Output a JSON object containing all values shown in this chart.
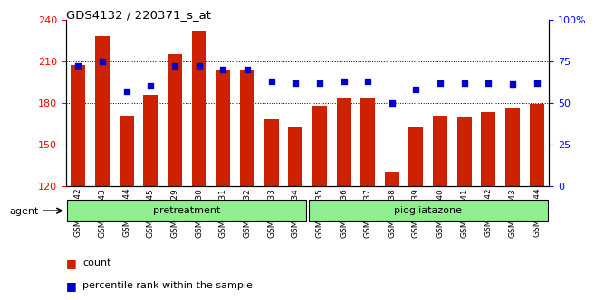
{
  "title": "GDS4132 / 220371_s_at",
  "samples": [
    "GSM201542",
    "GSM201543",
    "GSM201544",
    "GSM201545",
    "GSM201829",
    "GSM201830",
    "GSM201831",
    "GSM201832",
    "GSM201833",
    "GSM201834",
    "GSM201835",
    "GSM201836",
    "GSM201837",
    "GSM201838",
    "GSM201839",
    "GSM201840",
    "GSM201841",
    "GSM201842",
    "GSM201843",
    "GSM201844"
  ],
  "counts": [
    207,
    228,
    171,
    186,
    215,
    232,
    204,
    204,
    168,
    163,
    178,
    183,
    183,
    130,
    162,
    171,
    170,
    173,
    176,
    179
  ],
  "percentiles": [
    72,
    75,
    57,
    60,
    72,
    72,
    70,
    70,
    63,
    62,
    62,
    63,
    63,
    50,
    58,
    62,
    62,
    62,
    61,
    62
  ],
  "bar_color": "#cc2200",
  "dot_color": "#0000cc",
  "ylim_left": [
    120,
    240
  ],
  "ylim_right": [
    0,
    100
  ],
  "yticks_left": [
    120,
    150,
    180,
    210,
    240
  ],
  "yticks_right": [
    0,
    25,
    50,
    75,
    100
  ],
  "gridlines_at": [
    150,
    180,
    210
  ],
  "group1_label": "pretreatment",
  "group2_label": "piogliatazone",
  "group1_count": 10,
  "group2_count": 10,
  "agent_label": "agent",
  "legend_count_label": "count",
  "legend_pct_label": "percentile rank within the sample",
  "bg_color": "#ffffff"
}
